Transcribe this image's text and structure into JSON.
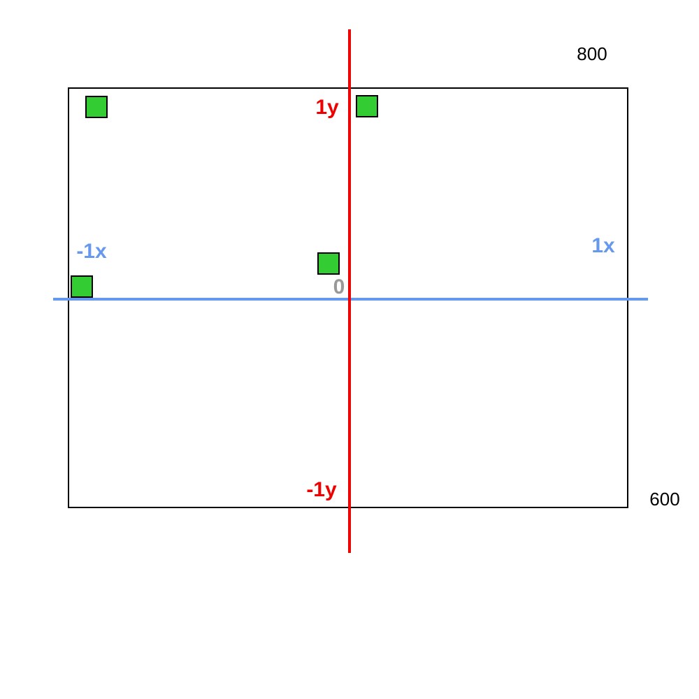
{
  "colors": {
    "frame": "#000000",
    "x_axis": "#6699ee",
    "y_axis": "#ee0000",
    "origin_label": "#999999",
    "marker_fill": "#33cc33",
    "marker_stroke": "#000000",
    "dimension_text": "#000000"
  },
  "labels": {
    "width_value": "800",
    "height_value": "600",
    "y_pos": "1y",
    "y_neg": "-1y",
    "x_pos": "1x",
    "x_neg": "-1x",
    "origin": "0"
  },
  "markers": [
    {
      "name": "marker-top-left"
    },
    {
      "name": "marker-top-center"
    },
    {
      "name": "marker-near-origin"
    },
    {
      "name": "marker-left-axis"
    }
  ]
}
